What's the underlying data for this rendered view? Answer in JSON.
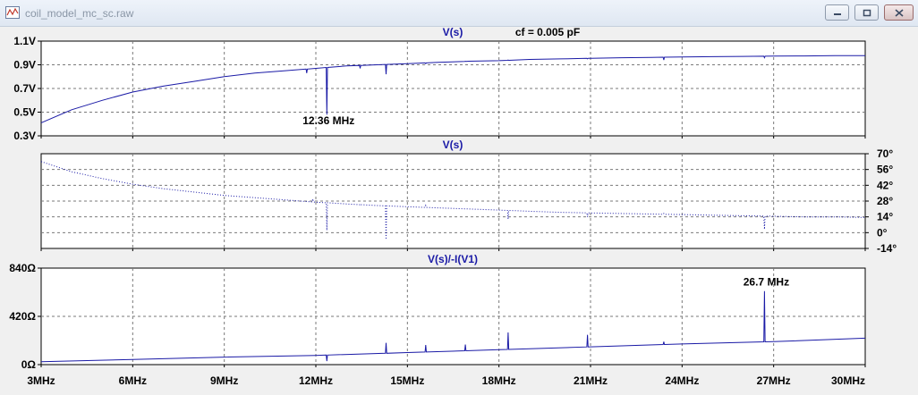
{
  "window": {
    "title": "coil_model_mc_sc.raw",
    "icons": {
      "app": "waveform-app-icon",
      "minimize": "minimize-icon",
      "maximize": "maximize-icon",
      "close": "close-icon"
    }
  },
  "colors": {
    "trace": "#1a1aa6",
    "title": "#1a1aa6",
    "grid": "#7a7a7a",
    "plot_bg": "#ffffff",
    "frame_bg": "#f0f0f0"
  },
  "chart_data": [
    {
      "type": "line",
      "title": "V(s)",
      "annotation_top": "cf = 0.005 pF",
      "ylabel": "",
      "y_ticks": [
        "1.1V",
        "0.9V",
        "0.7V",
        "0.5V",
        "0.3V"
      ],
      "y_tick_values": [
        1.1,
        0.9,
        0.7,
        0.5,
        0.3
      ],
      "ylim": [
        0.3,
        1.1
      ],
      "grid": true,
      "dotted": false,
      "marker_label": "12.36 MHz",
      "marker_x": 12.36,
      "marker_y": 0.43,
      "series": [
        {
          "baseline": [
            [
              3,
              0.41
            ],
            [
              4,
              0.52
            ],
            [
              5,
              0.6
            ],
            [
              6,
              0.67
            ],
            [
              7,
              0.72
            ],
            [
              8,
              0.76
            ],
            [
              9,
              0.8
            ],
            [
              10,
              0.83
            ],
            [
              11,
              0.85
            ],
            [
              12,
              0.87
            ],
            [
              13,
              0.89
            ],
            [
              14,
              0.9
            ],
            [
              15,
              0.91
            ],
            [
              16,
              0.92
            ],
            [
              17,
              0.93
            ],
            [
              18,
              0.935
            ],
            [
              19,
              0.945
            ],
            [
              20,
              0.95
            ],
            [
              21,
              0.955
            ],
            [
              22,
              0.96
            ],
            [
              23,
              0.963
            ],
            [
              24,
              0.966
            ],
            [
              25,
              0.969
            ],
            [
              26,
              0.971
            ],
            [
              27,
              0.973
            ],
            [
              28,
              0.975
            ],
            [
              29,
              0.977
            ],
            [
              30,
              0.978
            ]
          ],
          "spikes": [
            [
              11.7,
              0.83
            ],
            [
              12.0,
              0.8
            ],
            [
              12.36,
              0.48
            ],
            [
              13.45,
              0.87
            ],
            [
              14.3,
              0.82
            ],
            [
              15.6,
              0.91
            ],
            [
              16.9,
              0.93
            ],
            [
              18.3,
              0.94
            ],
            [
              20.9,
              0.95
            ],
            [
              23.4,
              0.94
            ],
            [
              26.7,
              0.96
            ]
          ]
        }
      ]
    },
    {
      "type": "line",
      "title": "V(s)",
      "ylabel": "",
      "y_ticks": [
        "70°",
        "56°",
        "42°",
        "28°",
        "14°",
        "0°",
        "-14°"
      ],
      "y_tick_values": [
        70,
        56,
        42,
        28,
        14,
        0,
        -14
      ],
      "ylim": [
        -14,
        70
      ],
      "grid": true,
      "dotted": true,
      "series": [
        {
          "baseline": [
            [
              3,
              63
            ],
            [
              4,
              54
            ],
            [
              5,
              48
            ],
            [
              6,
              43
            ],
            [
              7,
              39
            ],
            [
              8,
              36
            ],
            [
              9,
              33
            ],
            [
              10,
              31
            ],
            [
              11,
              29
            ],
            [
              12,
              27
            ],
            [
              13,
              25.5
            ],
            [
              14,
              24
            ],
            [
              15,
              23
            ],
            [
              16,
              22
            ],
            [
              17,
              21
            ],
            [
              18,
              20
            ],
            [
              19,
              19
            ],
            [
              20,
              18
            ],
            [
              21,
              17.5
            ],
            [
              22,
              17
            ],
            [
              23,
              16.5
            ],
            [
              24,
              16
            ],
            [
              25,
              15.5
            ],
            [
              26,
              15
            ],
            [
              27,
              14.5
            ],
            [
              28,
              14
            ],
            [
              29,
              14
            ],
            [
              30,
              13.5
            ]
          ],
          "spikes": [
            [
              11.9,
              30
            ],
            [
              12.36,
              2
            ],
            [
              13.45,
              24
            ],
            [
              14.3,
              -6
            ],
            [
              15.6,
              24
            ],
            [
              16.9,
              21
            ],
            [
              18.3,
              12
            ],
            [
              20.9,
              14
            ],
            [
              23.4,
              17
            ],
            [
              26.7,
              3
            ]
          ]
        }
      ]
    },
    {
      "type": "line",
      "title": "V(s)/-I(V1)",
      "ylabel": "",
      "y_ticks": [
        "840Ω",
        "420Ω",
        "0Ω"
      ],
      "y_tick_values": [
        840,
        420,
        0
      ],
      "ylim": [
        0,
        840
      ],
      "grid": true,
      "dotted": false,
      "marker_label": "26.7 MHz",
      "marker_x": 26.7,
      "marker_y": 720,
      "series": [
        {
          "baseline": [
            [
              3,
              25
            ],
            [
              6,
              45
            ],
            [
              9,
              65
            ],
            [
              12,
              80
            ],
            [
              15,
              105
            ],
            [
              18,
              130
            ],
            [
              21,
              155
            ],
            [
              24,
              180
            ],
            [
              27,
              200
            ],
            [
              30,
              230
            ]
          ],
          "spikes": [
            [
              12.36,
              30
            ],
            [
              14.3,
              190
            ],
            [
              15.6,
              170
            ],
            [
              16.9,
              175
            ],
            [
              18.3,
              280
            ],
            [
              20.9,
              260
            ],
            [
              23.4,
              200
            ],
            [
              26.7,
              640
            ]
          ]
        }
      ]
    }
  ],
  "x_axis": {
    "ticks": [
      "3MHz",
      "6MHz",
      "9MHz",
      "12MHz",
      "15MHz",
      "18MHz",
      "21MHz",
      "24MHz",
      "27MHz",
      "30MHz"
    ],
    "tick_values": [
      3,
      6,
      9,
      12,
      15,
      18,
      21,
      24,
      27,
      30
    ],
    "xlim": [
      3,
      30
    ]
  }
}
